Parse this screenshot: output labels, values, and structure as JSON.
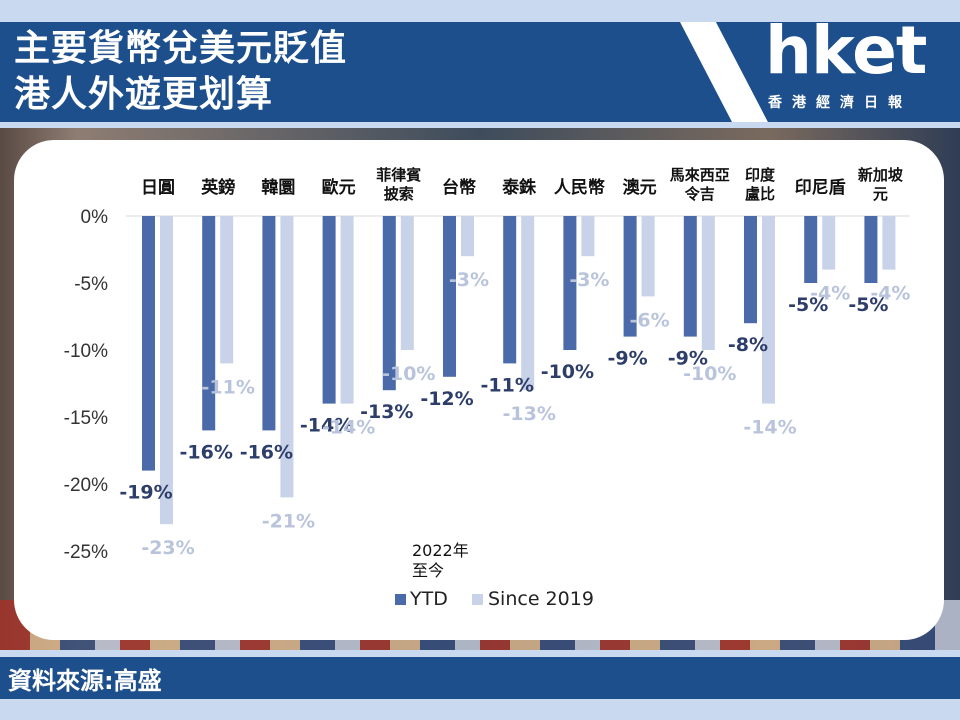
{
  "header": {
    "title_line1": "主要貨幣兌美元貶值",
    "title_line2": "港人外遊更划算"
  },
  "brand": {
    "logo_text": "hket",
    "logo_sub": "香港經濟日報"
  },
  "footer": {
    "source": "資料來源:高盛"
  },
  "colors": {
    "header_bg": "#1d4f8d",
    "ytd": "#4a6aaa",
    "since2019": "#c8d2e8",
    "ytd_label": "#2e3e6a",
    "since_label": "#b9c4dc"
  },
  "chart_data": {
    "type": "bar",
    "title": "",
    "xlabel": "",
    "ylabel": "",
    "ylim": [
      -25,
      0
    ],
    "y_ticks": [
      "0%",
      "-5%",
      "-10%",
      "-15%",
      "-20%",
      "-25%"
    ],
    "y_tick_values": [
      0,
      -5,
      -10,
      -15,
      -20,
      -25
    ],
    "categories": [
      "日圓",
      "英鎊",
      "韓圜",
      "歐元",
      "菲律賓披索",
      "台幣",
      "泰銖",
      "人民幣",
      "澳元",
      "馬來西亞令吉",
      "印度盧比",
      "印尼盾",
      "新加坡元"
    ],
    "category_lines": [
      [
        "日圓"
      ],
      [
        "英鎊"
      ],
      [
        "韓圜"
      ],
      [
        "歐元"
      ],
      [
        "菲律賓",
        "披索"
      ],
      [
        "台幣"
      ],
      [
        "泰銖"
      ],
      [
        "人民幣"
      ],
      [
        "澳元"
      ],
      [
        "馬來西亞",
        "令吉"
      ],
      [
        "印度",
        "盧比"
      ],
      [
        "印尼盾"
      ],
      [
        "新加坡",
        "元"
      ]
    ],
    "series": [
      {
        "name": "YTD",
        "values": [
          -19,
          -16,
          -16,
          -14,
          -13,
          -12,
          -11,
          -10,
          -9,
          -9,
          -8,
          -5,
          -5
        ],
        "labels": [
          "-19%",
          "-16%",
          "-16%",
          "-14%",
          "-13%",
          "-12%",
          "-11%",
          "-10%",
          "-9%",
          "-9%",
          "-8%",
          "-5%",
          "-5%"
        ]
      },
      {
        "name": "Since 2019",
        "values": [
          -23,
          -11,
          -21,
          -14,
          -10,
          -3,
          -13,
          -3,
          -6,
          -10,
          -14,
          -4,
          -4
        ],
        "labels": [
          "-23%",
          "-11%",
          "-21%",
          "-14%",
          "-10%",
          "-3%",
          "-13%",
          "-3%",
          "-6%",
          "-10%",
          "-14%",
          "-4%",
          "-4%"
        ]
      }
    ],
    "legend": {
      "title_lines": [
        "2022年",
        "至今"
      ],
      "position": "bottom"
    }
  }
}
